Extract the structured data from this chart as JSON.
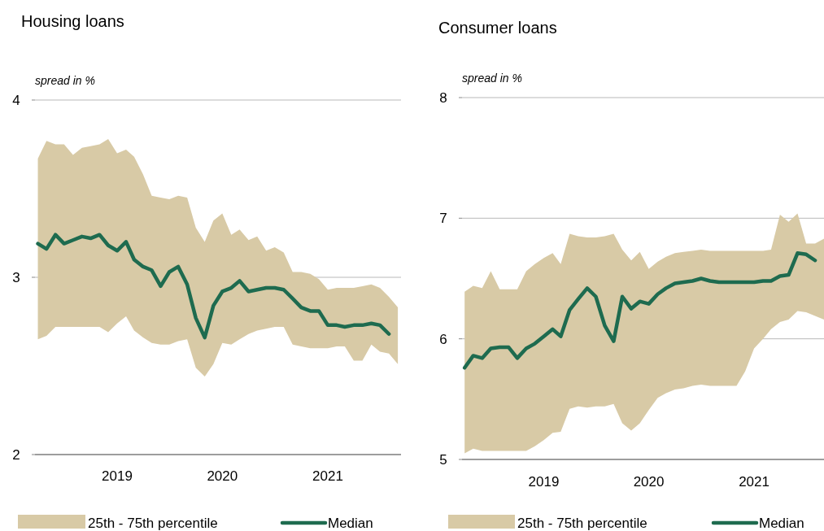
{
  "chart_data": [
    {
      "type": "line",
      "title": "Housing loans",
      "ylabel": "spread in %",
      "x": [
        "2018-04",
        "2018-05",
        "2018-06",
        "2018-07",
        "2018-08",
        "2018-09",
        "2018-10",
        "2018-11",
        "2018-12",
        "2019-01",
        "2019-02",
        "2019-03",
        "2019-04",
        "2019-05",
        "2019-06",
        "2019-07",
        "2019-08",
        "2019-09",
        "2019-10",
        "2019-11",
        "2019-12",
        "2020-01",
        "2020-02",
        "2020-03",
        "2020-04",
        "2020-05",
        "2020-06",
        "2020-07",
        "2020-08",
        "2020-09",
        "2020-10",
        "2020-11",
        "2020-12",
        "2021-01",
        "2021-02",
        "2021-03",
        "2021-04",
        "2021-05",
        "2021-06",
        "2021-07",
        "2021-08",
        "2021-09"
      ],
      "xlim": [
        "2018-03-22",
        "2021-09-12"
      ],
      "xticks": [
        "2019",
        "2020",
        "2021"
      ],
      "ylim": [
        2,
        4
      ],
      "yticks": [
        2,
        3,
        4
      ],
      "grid": "y",
      "legend": "bottom",
      "annotations": [
        "25th - 75th percentile"
      ],
      "series": [
        {
          "name": "Median",
          "type": "line",
          "color": "#1e6b4f",
          "values": [
            3.19,
            3.16,
            3.24,
            3.19,
            3.21,
            3.23,
            3.22,
            3.24,
            3.18,
            3.15,
            3.2,
            3.1,
            3.06,
            3.04,
            2.95,
            3.03,
            3.06,
            2.96,
            2.77,
            2.66,
            2.84,
            2.92,
            2.94,
            2.98,
            2.92,
            2.93,
            2.94,
            2.94,
            2.93,
            2.88,
            2.83,
            2.81,
            2.81,
            2.73,
            2.73,
            2.72,
            2.73,
            2.73,
            2.74,
            2.73,
            2.68,
            null
          ],
          "lower": [
            2.65,
            2.67,
            2.72,
            2.72,
            2.72,
            2.72,
            2.72,
            2.72,
            2.69,
            2.74,
            2.78,
            2.7,
            2.66,
            2.63,
            2.62,
            2.62,
            2.64,
            2.65,
            2.49,
            2.44,
            2.51,
            2.63,
            2.62,
            2.65,
            2.68,
            2.7,
            2.71,
            2.72,
            2.72,
            2.62,
            2.61,
            2.6,
            2.6,
            2.6,
            2.61,
            2.61,
            2.53,
            2.53,
            2.62,
            2.58,
            2.57,
            2.51
          ],
          "upper": [
            3.67,
            3.77,
            3.75,
            3.75,
            3.69,
            3.73,
            3.74,
            3.75,
            3.78,
            3.7,
            3.72,
            3.68,
            3.58,
            3.46,
            3.45,
            3.44,
            3.46,
            3.45,
            3.28,
            3.2,
            3.32,
            3.36,
            3.24,
            3.27,
            3.21,
            3.23,
            3.15,
            3.17,
            3.14,
            3.03,
            3.03,
            3.02,
            2.99,
            2.93,
            2.94,
            2.94,
            2.94,
            2.95,
            2.96,
            2.94,
            2.89,
            2.83
          ]
        }
      ]
    },
    {
      "type": "line",
      "title": "Consumer loans",
      "ylabel": "spread in %",
      "x": [
        "2018-04",
        "2018-05",
        "2018-06",
        "2018-07",
        "2018-08",
        "2018-09",
        "2018-10",
        "2018-11",
        "2018-12",
        "2019-01",
        "2019-02",
        "2019-03",
        "2019-04",
        "2019-05",
        "2019-06",
        "2019-07",
        "2019-08",
        "2019-09",
        "2019-10",
        "2019-11",
        "2019-12",
        "2020-01",
        "2020-02",
        "2020-03",
        "2020-04",
        "2020-05",
        "2020-06",
        "2020-07",
        "2020-08",
        "2020-09",
        "2020-10",
        "2020-11",
        "2020-12",
        "2021-01",
        "2021-02",
        "2021-03",
        "2021-04",
        "2021-05",
        "2021-06",
        "2021-07",
        "2021-08",
        "2021-09"
      ],
      "xlim": [
        "2018-03-23",
        "2021-09-01"
      ],
      "xticks": [
        "2019",
        "2020",
        "2021"
      ],
      "ylim": [
        5,
        8
      ],
      "yticks": [
        5,
        6,
        7,
        8
      ],
      "grid": "y",
      "legend": "bottom",
      "annotations": [
        "25th - 75th percentile"
      ],
      "series": [
        {
          "name": "Median",
          "type": "line",
          "color": "#1e6b4f",
          "values": [
            5.76,
            5.86,
            5.84,
            5.92,
            5.93,
            5.93,
            5.84,
            5.92,
            5.96,
            6.02,
            6.08,
            6.02,
            6.24,
            6.33,
            6.42,
            6.35,
            6.11,
            5.98,
            6.35,
            6.25,
            6.31,
            6.29,
            6.37,
            6.42,
            6.46,
            6.47,
            6.48,
            6.5,
            6.48,
            6.47,
            6.47,
            6.47,
            6.47,
            6.47,
            6.48,
            6.48,
            6.52,
            6.53,
            6.71,
            6.7,
            6.65,
            null
          ],
          "lower": [
            5.05,
            5.09,
            5.07,
            5.07,
            5.07,
            5.07,
            5.07,
            5.07,
            5.11,
            5.16,
            5.22,
            5.23,
            5.42,
            5.44,
            5.43,
            5.44,
            5.44,
            5.46,
            5.3,
            5.24,
            5.3,
            5.41,
            5.51,
            5.55,
            5.58,
            5.59,
            5.61,
            5.62,
            5.61,
            5.61,
            5.61,
            5.61,
            5.73,
            5.92,
            6.0,
            6.08,
            6.14,
            6.16,
            6.23,
            6.22,
            6.19,
            6.16
          ],
          "upper": [
            6.39,
            6.44,
            6.42,
            6.56,
            6.41,
            6.41,
            6.41,
            6.56,
            6.62,
            6.67,
            6.71,
            6.62,
            6.87,
            6.85,
            6.84,
            6.84,
            6.85,
            6.87,
            6.74,
            6.65,
            6.72,
            6.58,
            6.64,
            6.68,
            6.71,
            6.72,
            6.73,
            6.74,
            6.73,
            6.73,
            6.73,
            6.73,
            6.73,
            6.73,
            6.73,
            6.74,
            7.03,
            6.97,
            7.04,
            6.79,
            6.79,
            6.83
          ]
        }
      ]
    }
  ]
}
